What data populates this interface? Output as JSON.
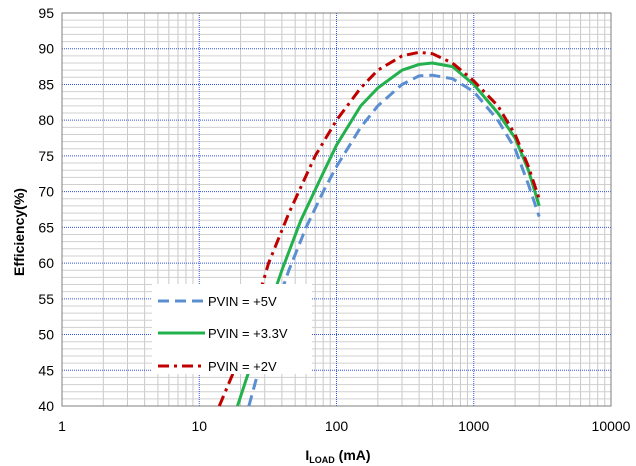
{
  "chart_data": {
    "type": "line",
    "title": "",
    "xlabel": {
      "main": "I",
      "sub": "LOAD",
      "unit": " (mA)"
    },
    "ylabel": "Efficiency(%)",
    "xscale": "log",
    "xlim": [
      1,
      10000
    ],
    "ylim": [
      40,
      95
    ],
    "x_ticks": [
      "1",
      "10",
      "100",
      "1000",
      "10000"
    ],
    "y_ticks": [
      "40",
      "45",
      "50",
      "55",
      "60",
      "65",
      "70",
      "75",
      "80",
      "85",
      "90",
      "95"
    ],
    "grid": true,
    "legend_position": "bottom-left",
    "series": [
      {
        "name": "PVIN = +5V",
        "color": "#5B8FD1",
        "style": "dashed",
        "points": [
          [
            23,
            40
          ],
          [
            28,
            46
          ],
          [
            35,
            53
          ],
          [
            45,
            59
          ],
          [
            60,
            65
          ],
          [
            80,
            70
          ],
          [
            100,
            73.5
          ],
          [
            150,
            79
          ],
          [
            200,
            82
          ],
          [
            300,
            85
          ],
          [
            400,
            86.2
          ],
          [
            500,
            86.3
          ],
          [
            700,
            85.8
          ],
          [
            1000,
            84
          ],
          [
            1500,
            80
          ],
          [
            2000,
            76
          ],
          [
            2500,
            71
          ],
          [
            3000,
            66.5
          ]
        ]
      },
      {
        "name": "PVIN = +3.3V",
        "color": "#22B14C",
        "style": "solid",
        "points": [
          [
            19,
            40
          ],
          [
            25,
            47
          ],
          [
            30,
            52
          ],
          [
            40,
            59
          ],
          [
            55,
            66
          ],
          [
            75,
            71.5
          ],
          [
            100,
            76.5
          ],
          [
            150,
            82
          ],
          [
            200,
            84.5
          ],
          [
            300,
            87
          ],
          [
            400,
            87.8
          ],
          [
            500,
            88
          ],
          [
            700,
            87.5
          ],
          [
            1000,
            85
          ],
          [
            1500,
            81
          ],
          [
            2000,
            77.5
          ],
          [
            2500,
            73
          ],
          [
            3000,
            68
          ]
        ]
      },
      {
        "name": "PVIN = +2V",
        "color": "#C00000",
        "style": "dashdot",
        "points": [
          [
            14,
            40
          ],
          [
            18,
            45
          ],
          [
            25,
            53
          ],
          [
            32,
            60
          ],
          [
            45,
            67
          ],
          [
            70,
            75
          ],
          [
            100,
            80
          ],
          [
            150,
            84.5
          ],
          [
            200,
            87
          ],
          [
            300,
            89
          ],
          [
            400,
            89.5
          ],
          [
            500,
            89.3
          ],
          [
            700,
            88
          ],
          [
            1000,
            85.5
          ],
          [
            1500,
            82
          ],
          [
            2000,
            78
          ],
          [
            2500,
            73.5
          ],
          [
            3000,
            69
          ]
        ]
      }
    ]
  }
}
